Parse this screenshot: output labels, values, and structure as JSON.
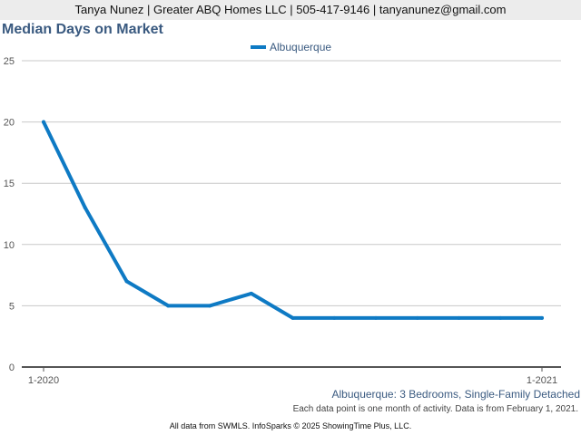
{
  "header": {
    "contact": "Tanya Nunez | Greater ABQ Homes LLC | 505-417-9146 | tanyanunez@gmail.com"
  },
  "colors": {
    "series": "#0e7ac4",
    "title": "#3a5a80",
    "grid": "#c8c8c8",
    "axis": "#555555"
  },
  "chart_data": {
    "type": "line",
    "title": "Median Days on Market",
    "xlabel": "",
    "ylabel": "",
    "x_tick_labels": [
      "1-2020",
      "1-2021"
    ],
    "y_ticks": [
      0,
      5,
      10,
      15,
      20,
      25
    ],
    "ylim": [
      0,
      25
    ],
    "grid": true,
    "legend_position": "top-center",
    "series": [
      {
        "name": "Albuquerque",
        "values": [
          20,
          13,
          7,
          5,
          5,
          6,
          4,
          4,
          4,
          4,
          4,
          4,
          4
        ]
      }
    ],
    "subcaption": "Albuquerque: 3 Bedrooms, Single-Family Detached",
    "note": "Each data point is one month of activity. Data is from February 1, 2021."
  },
  "footer": {
    "text": "All data from SWMLS. InfoSparks © 2025 ShowingTime Plus, LLC."
  }
}
